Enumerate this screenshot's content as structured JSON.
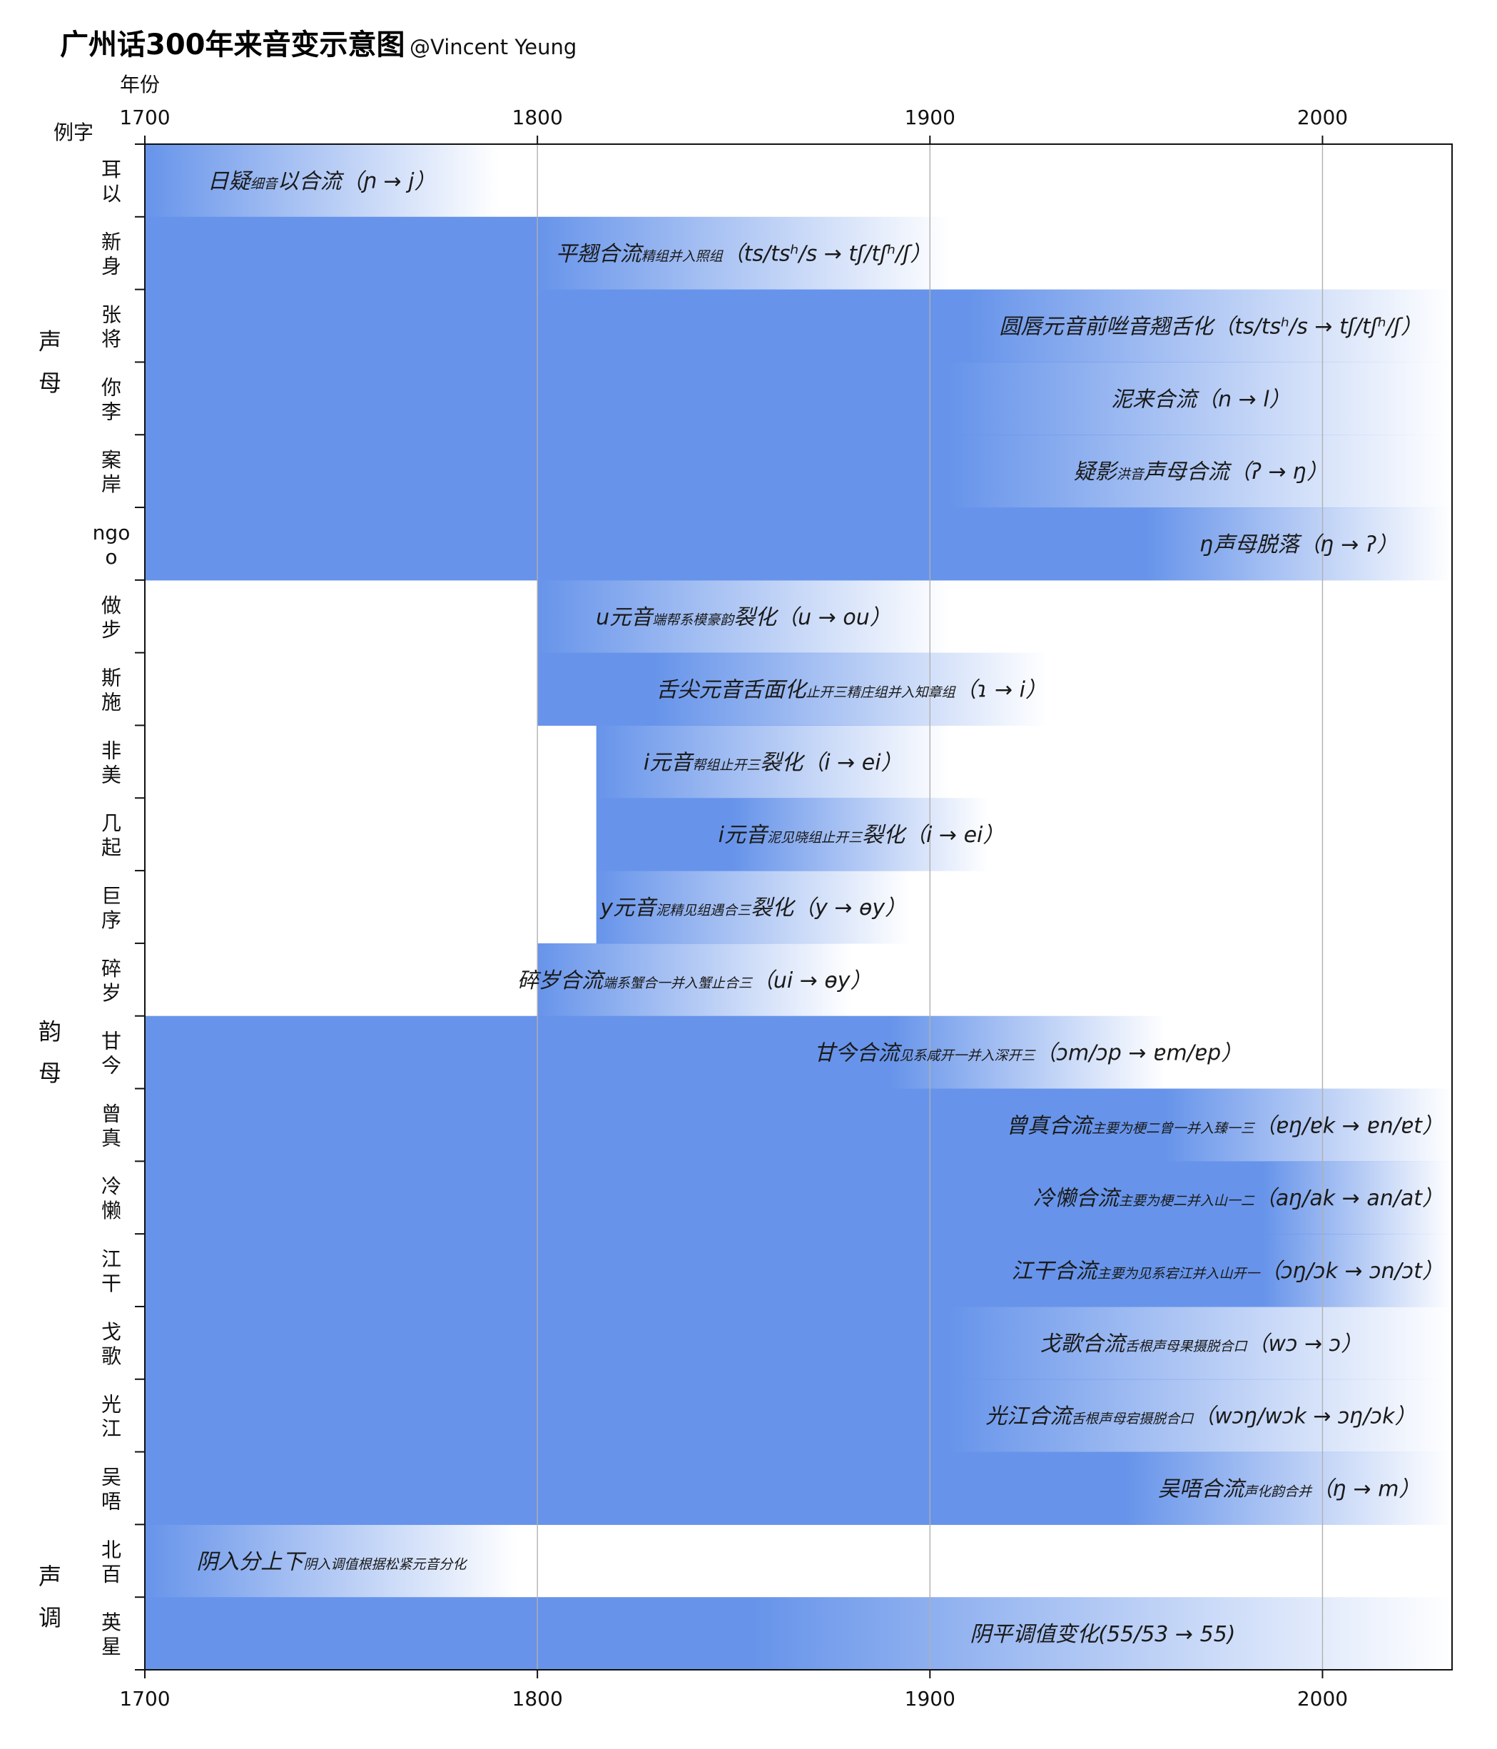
{
  "chart_data": {
    "type": "bar",
    "orientation": "horizontal",
    "title": "广州话300年来音变示意图",
    "subtitle": "@Vincent Yeung",
    "xlabel": "年份",
    "ylabel": "例字",
    "xlim": [
      1700,
      2033
    ],
    "xticks": [
      1700,
      1800,
      1900,
      2000
    ],
    "grid": true,
    "bar_color": "#6794ea",
    "groups": [
      {
        "name": "声母",
        "rows": [
          0,
          5
        ]
      },
      {
        "name": "韵母",
        "rows": [
          6,
          18
        ]
      },
      {
        "name": "声调",
        "rows": [
          19,
          20
        ]
      }
    ],
    "rows": [
      {
        "example": [
          "耳",
          "以"
        ],
        "label": {
          "main": "日疑",
          "sub": "细音",
          "main2": "以合流",
          "ipa": "（ɲ → j）"
        },
        "start": 1700,
        "fade_start": 1700,
        "fade_end": 1790
      },
      {
        "example": [
          "新",
          "身"
        ],
        "label": {
          "main": "平翘合流",
          "sub": "精组并入照组",
          "main2": "",
          "ipa": "（ts/tsʰ/s → tʃ/tʃʰ/ʃ）"
        },
        "start": 1700,
        "fade_start": 1800,
        "fade_end": 1905
      },
      {
        "example": [
          "张",
          "将"
        ],
        "label": {
          "main": "圆唇元音前咝音翘舌化",
          "sub": "",
          "main2": "",
          "ipa": "（ts/tsʰ/s → tʃ/tʃʰ/ʃ）"
        },
        "start": 1700,
        "fade_start": 1910,
        "fade_end": 2033
      },
      {
        "example": [
          "你",
          "李"
        ],
        "label": {
          "main": "泥来合流",
          "sub": "",
          "main2": "",
          "ipa": "（n → l）"
        },
        "start": 1700,
        "fade_start": 1905,
        "fade_end": 2033
      },
      {
        "example": [
          "案",
          "岸"
        ],
        "label": {
          "main": "疑影",
          "sub": "洪音",
          "main2": "声母合流",
          "ipa": "（ʔ → ŋ）"
        },
        "start": 1700,
        "fade_start": 1905,
        "fade_end": 2033
      },
      {
        "example": [
          "ngo",
          "o"
        ],
        "label": {
          "main": "ŋ声母脱落",
          "sub": "",
          "main2": "",
          "ipa": "（ŋ → ʔ）"
        },
        "start": 1700,
        "fade_start": 1955,
        "fade_end": 2033
      },
      {
        "example": [
          "做",
          "步"
        ],
        "label": {
          "main": "u元音",
          "sub": "端帮系模豪韵",
          "main2": "裂化",
          "ipa": "（u → ou）"
        },
        "start": 1800,
        "fade_start": 1800,
        "fade_end": 1905
      },
      {
        "example": [
          "斯",
          "施"
        ],
        "label": {
          "main": "舌尖元音舌面化",
          "sub": "止开三精庄组并入知章组",
          "main2": "",
          "ipa": "（ɿ → i）"
        },
        "start": 1800,
        "fade_start": 1830,
        "fade_end": 1930
      },
      {
        "example": [
          "非",
          "美"
        ],
        "label": {
          "main": "i元音",
          "sub": "帮组止开三",
          "main2": "裂化",
          "ipa": "（i → ei）"
        },
        "start": 1815,
        "fade_start": 1815,
        "fade_end": 1905
      },
      {
        "example": [
          "几",
          "起"
        ],
        "label": {
          "main": "i元音",
          "sub": "泥见晓组止开三",
          "main2": "裂化",
          "ipa": "（i → ei）"
        },
        "start": 1815,
        "fade_start": 1850,
        "fade_end": 1915
      },
      {
        "example": [
          "巨",
          "序"
        ],
        "label": {
          "main": "y元音",
          "sub": "泥精见组遇合三",
          "main2": "裂化",
          "ipa": "（y → ɵy）"
        },
        "start": 1815,
        "fade_start": 1815,
        "fade_end": 1895
      },
      {
        "example": [
          "碎",
          "岁"
        ],
        "label": {
          "main": "碎岁合流",
          "sub": "端系蟹合一并入蟹止合三",
          "main2": "",
          "ipa": "（ui → ɵy）"
        },
        "start": 1800,
        "fade_start": 1800,
        "fade_end": 1880
      },
      {
        "example": [
          "甘",
          "今"
        ],
        "label": {
          "main": "甘今合流",
          "sub": "见系咸开一并入深开三",
          "main2": "",
          "ipa": "（ɔm/ɔp → ɐm/ɐp）"
        },
        "start": 1700,
        "fade_start": 1890,
        "fade_end": 1960
      },
      {
        "example": [
          "曾",
          "真"
        ],
        "label": {
          "main": "曾真合流",
          "sub": "主要为梗二曾一并入臻一三",
          "main2": "",
          "ipa": "（ɐŋ/ɐk → ɐn/ɐt）"
        },
        "start": 1700,
        "fade_start": 1960,
        "fade_end": 2033
      },
      {
        "example": [
          "冷",
          "懒"
        ],
        "label": {
          "main": "冷懒合流",
          "sub": "主要为梗二并入山一二",
          "main2": "",
          "ipa": "（aŋ/ak → an/at）"
        },
        "start": 1700,
        "fade_start": 1985,
        "fade_end": 2033
      },
      {
        "example": [
          "江",
          "干"
        ],
        "label": {
          "main": "江干合流",
          "sub": "主要为见系宕江并入山开一",
          "main2": "",
          "ipa": "（ɔŋ/ɔk → ɔn/ɔt）"
        },
        "start": 1700,
        "fade_start": 1985,
        "fade_end": 2033
      },
      {
        "example": [
          "戈",
          "歌"
        ],
        "label": {
          "main": "戈歌合流",
          "sub": "舌根声母果摄脱合口",
          "main2": "",
          "ipa": "（wɔ → ɔ）"
        },
        "start": 1700,
        "fade_start": 1905,
        "fade_end": 2033
      },
      {
        "example": [
          "光",
          "江"
        ],
        "label": {
          "main": "光江合流",
          "sub": "舌根声母宕摄脱合口",
          "main2": "",
          "ipa": "（wɔŋ/wɔk → ɔŋ/ɔk）"
        },
        "start": 1700,
        "fade_start": 1905,
        "fade_end": 2033
      },
      {
        "example": [
          "吴",
          "唔"
        ],
        "label": {
          "main": "吴唔合流",
          "sub": "声化韵合并",
          "main2": "",
          "ipa": "（ŋ → m）"
        },
        "start": 1700,
        "fade_start": 1950,
        "fade_end": 2033
      },
      {
        "example": [
          "北",
          "百"
        ],
        "label": {
          "main": "阴入分上下",
          "sub": "阴入调值根据松紧元音分化",
          "main2": "",
          "ipa": ""
        },
        "start": 1700,
        "fade_start": 1700,
        "fade_end": 1795
      },
      {
        "example": [
          "英",
          "星"
        ],
        "label": {
          "main": "阴平调值变化",
          "sub": "",
          "main2": "",
          "ipa": "(55/53 → 55)"
        },
        "start": 1700,
        "fade_start": 1855,
        "fade_end": 2033
      }
    ]
  }
}
